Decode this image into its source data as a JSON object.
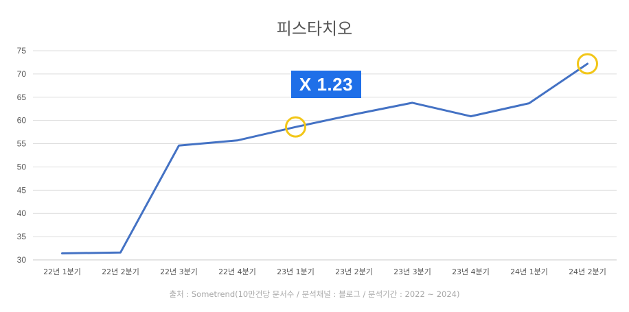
{
  "chart_data": {
    "type": "line",
    "title": "피스타치오",
    "categories": [
      "22년 1분기",
      "22년 2분기",
      "22년 3분기",
      "22년 4분기",
      "23년 1분기",
      "23년 2분기",
      "23년 3분기",
      "23년 4분기",
      "24년 1분기",
      "24년 2분기"
    ],
    "series": [
      {
        "values": [
          31.4,
          31.6,
          54.6,
          55.7,
          58.6,
          61.3,
          63.8,
          60.9,
          63.7,
          72.2
        ]
      }
    ],
    "ylim": [
      30,
      75
    ],
    "yticks": [
      30,
      35,
      40,
      45,
      50,
      55,
      60,
      65,
      70,
      75
    ],
    "xlabel": "",
    "ylabel": "",
    "grid": true,
    "line_color": "#4472c4",
    "highlight_indices": [
      4,
      9
    ],
    "highlight_color": "#f2c618",
    "annotation": {
      "text": "X 1.23",
      "color": "#1f6fe8"
    },
    "source": "출처 : Sometrend(10만건당 문서수 / 분석채널 : 블로그 / 분석기간 : 2022 ~ 2024)"
  }
}
